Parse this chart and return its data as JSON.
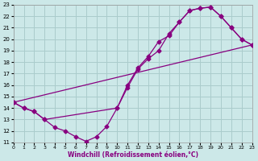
{
  "xlabel": "Windchill (Refroidissement éolien,°C)",
  "bg_color": "#cce8e8",
  "grid_color": "#aacccc",
  "line_color": "#880080",
  "xlim": [
    0,
    23
  ],
  "ylim": [
    11,
    23
  ],
  "xticks": [
    0,
    1,
    2,
    3,
    4,
    5,
    6,
    7,
    8,
    9,
    10,
    11,
    12,
    13,
    14,
    15,
    16,
    17,
    18,
    19,
    20,
    21,
    22,
    23
  ],
  "yticks": [
    11,
    12,
    13,
    14,
    15,
    16,
    17,
    18,
    19,
    20,
    21,
    22,
    23
  ],
  "curve1_x": [
    0,
    1,
    2,
    3,
    10,
    11,
    12,
    13,
    14,
    15,
    16,
    17,
    18,
    19,
    20,
    21,
    22,
    23
  ],
  "curve1_y": [
    14.5,
    14.0,
    13.7,
    13.0,
    14.0,
    16.0,
    17.5,
    18.5,
    19.8,
    20.3,
    21.5,
    22.5,
    22.7,
    22.8,
    22.0,
    21.0,
    20.0,
    19.5
  ],
  "curve2_x": [
    0,
    1,
    2,
    3,
    4,
    5,
    6,
    7,
    8,
    9,
    10,
    11,
    12,
    13,
    14,
    15,
    16,
    17,
    18,
    19,
    20,
    21,
    22,
    23
  ],
  "curve2_y": [
    14.5,
    14.0,
    13.7,
    13.0,
    12.3,
    12.0,
    11.5,
    11.1,
    11.5,
    12.4,
    14.0,
    15.8,
    17.4,
    18.3,
    19.0,
    20.5,
    21.5,
    22.5,
    22.7,
    22.8,
    22.0,
    21.0,
    20.0,
    19.5
  ],
  "line3_x": [
    0,
    23
  ],
  "line3_y": [
    14.5,
    19.5
  ]
}
